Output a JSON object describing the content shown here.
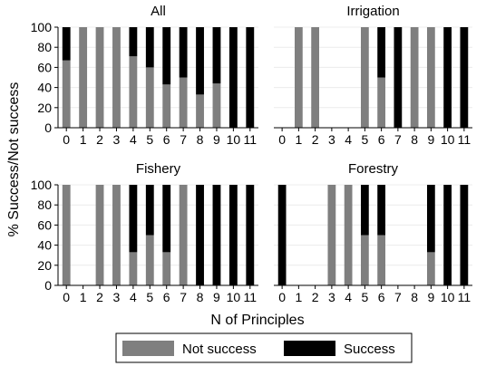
{
  "colors": {
    "not_success": "#7f7f7f",
    "success": "#000000",
    "background": "#ffffff"
  },
  "ylabel": "% Success/Not success",
  "xlabel": "N of Principles",
  "legend": {
    "placement": "bottom",
    "items": [
      {
        "label": "Not success",
        "color": "#7f7f7f"
      },
      {
        "label": "Success",
        "color": "#000000"
      }
    ]
  },
  "chart_data": [
    {
      "type": "bar",
      "stacked": true,
      "title": "All",
      "categories": [
        "0",
        "1",
        "2",
        "3",
        "4",
        "5",
        "6",
        "7",
        "8",
        "9",
        "10",
        "11"
      ],
      "ylim": [
        0,
        100
      ],
      "yticks": [
        0,
        20,
        40,
        60,
        80,
        100
      ],
      "series": [
        {
          "name": "Not success",
          "values": [
            67,
            100,
            100,
            100,
            71,
            60,
            43,
            50,
            33,
            44,
            0,
            0
          ]
        },
        {
          "name": "Success",
          "values": [
            33,
            0,
            0,
            0,
            29,
            40,
            57,
            50,
            67,
            56,
            100,
            100
          ]
        }
      ]
    },
    {
      "type": "bar",
      "stacked": true,
      "title": "Irrigation",
      "categories": [
        "0",
        "1",
        "2",
        "3",
        "4",
        "5",
        "6",
        "7",
        "8",
        "9",
        "10",
        "11"
      ],
      "ylim": [
        0,
        100
      ],
      "yticks": [
        0,
        20,
        40,
        60,
        80,
        100
      ],
      "series": [
        {
          "name": "Not success",
          "values": [
            0,
            100,
            100,
            0,
            0,
            100,
            50,
            0,
            100,
            100,
            0,
            0
          ]
        },
        {
          "name": "Success",
          "values": [
            0,
            0,
            0,
            0,
            0,
            0,
            50,
            100,
            0,
            0,
            100,
            100
          ]
        }
      ]
    },
    {
      "type": "bar",
      "stacked": true,
      "title": "Fishery",
      "categories": [
        "0",
        "1",
        "2",
        "3",
        "4",
        "5",
        "6",
        "7",
        "8",
        "9",
        "10",
        "11"
      ],
      "ylim": [
        0,
        100
      ],
      "yticks": [
        0,
        20,
        40,
        60,
        80,
        100
      ],
      "series": [
        {
          "name": "Not success",
          "values": [
            100,
            0,
            100,
            100,
            33,
            50,
            33,
            100,
            0,
            0,
            0,
            0
          ]
        },
        {
          "name": "Success",
          "values": [
            0,
            0,
            0,
            0,
            67,
            50,
            67,
            0,
            100,
            100,
            100,
            100
          ]
        }
      ]
    },
    {
      "type": "bar",
      "stacked": true,
      "title": "Forestry",
      "categories": [
        "0",
        "1",
        "2",
        "3",
        "4",
        "5",
        "6",
        "7",
        "8",
        "9",
        "10",
        "11"
      ],
      "ylim": [
        0,
        100
      ],
      "yticks": [
        0,
        20,
        40,
        60,
        80,
        100
      ],
      "series": [
        {
          "name": "Not success",
          "values": [
            0,
            0,
            0,
            100,
            100,
            50,
            50,
            0,
            0,
            33,
            0,
            0
          ]
        },
        {
          "name": "Success",
          "values": [
            100,
            0,
            0,
            0,
            0,
            50,
            50,
            0,
            0,
            67,
            100,
            100
          ]
        }
      ]
    }
  ]
}
